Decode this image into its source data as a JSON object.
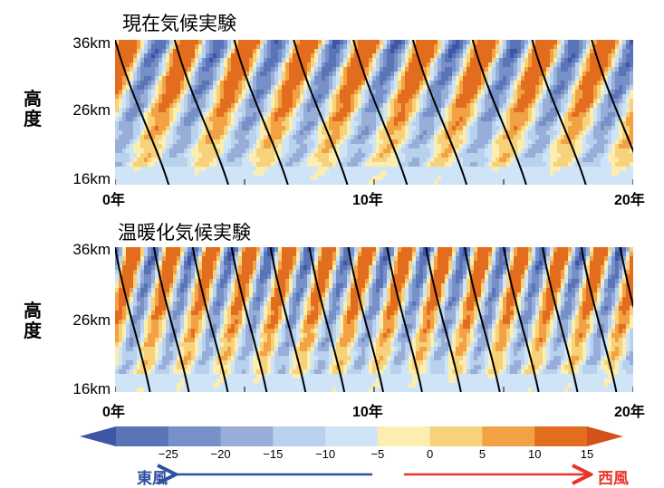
{
  "colors": {
    "east_arrow": "#2f4fa0",
    "west_arrow": "#e8352a",
    "zero_contour": "#000000"
  },
  "chart_data": [
    {
      "type": "heatmap",
      "title": "現在気候実験",
      "ylabel": "高度",
      "y_ticks": [
        "36km",
        "26km",
        "16km"
      ],
      "x_ticks": [
        "0年",
        "10年",
        "20年"
      ],
      "xlim": [
        0,
        20
      ],
      "ylim": [
        16,
        36
      ],
      "y_unit": "km",
      "x_unit": "年",
      "cycle_years": [
        0.0,
        2.3,
        4.6,
        6.9,
        9.2,
        11.5,
        13.8,
        16.1,
        18.4
      ],
      "westerly_peak": 15,
      "easterly_peak": -25
    },
    {
      "type": "heatmap",
      "title": "温暖化気候実験",
      "ylabel": "高度",
      "y_ticks": [
        "36km",
        "26km",
        "16km"
      ],
      "x_ticks": [
        "0年",
        "10年",
        "20年"
      ],
      "xlim": [
        0,
        20
      ],
      "ylim": [
        16,
        36
      ],
      "y_unit": "km",
      "x_unit": "年",
      "cycle_years": [
        0.0,
        1.5,
        3.0,
        4.5,
        6.0,
        7.5,
        9.0,
        10.5,
        12.0,
        13.5,
        15.0,
        16.5,
        18.0,
        19.5
      ],
      "westerly_peak": 15,
      "easterly_peak": -25
    }
  ],
  "colorbar": {
    "levels": [
      -25,
      -20,
      -15,
      -10,
      -5,
      0,
      5,
      10,
      15
    ],
    "labels": [
      "−25",
      "−20",
      "−15",
      "−10",
      "−5",
      "0",
      "5",
      "10",
      "15"
    ],
    "colors": [
      "#3e56a6",
      "#5a74b8",
      "#7790c8",
      "#98aed8",
      "#b8d1ec",
      "#cfe5f7",
      "#fbeeb0",
      "#f6d27a",
      "#f2a245",
      "#e26d1e",
      "#d4521a"
    ],
    "east_label": "東風",
    "west_label": "西風"
  }
}
